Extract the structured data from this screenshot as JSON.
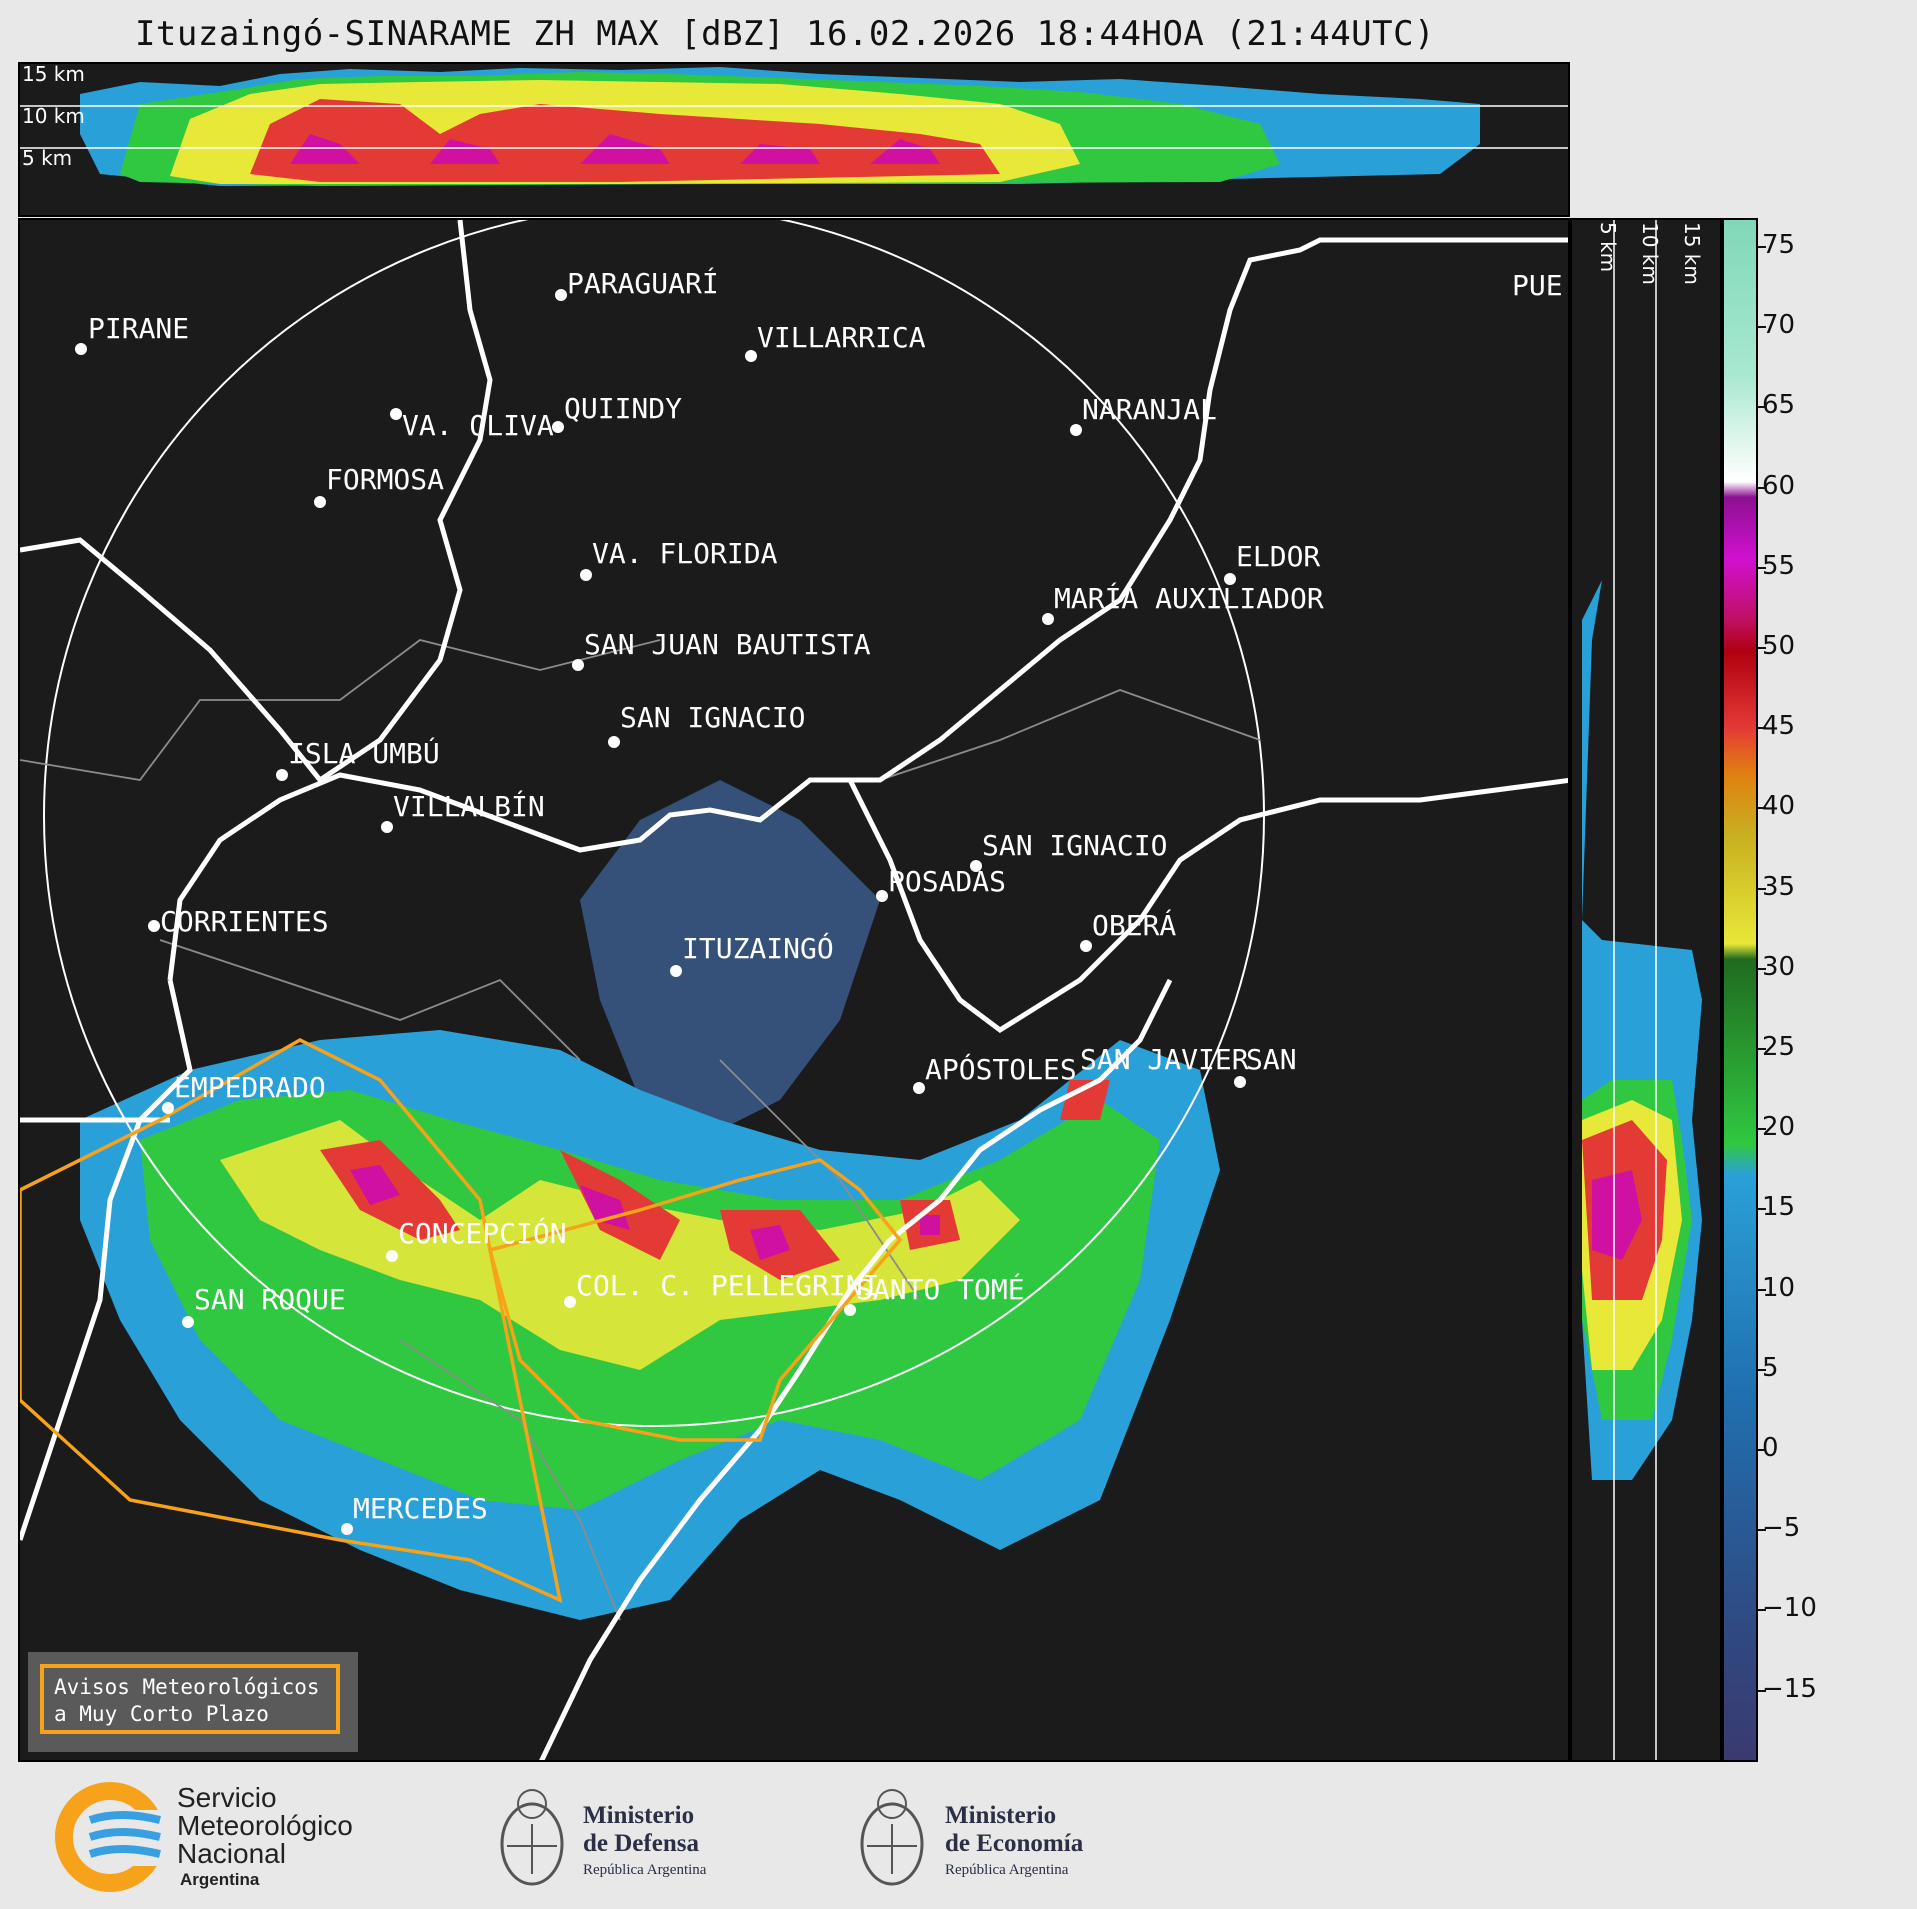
{
  "title": "Ituzaingó-SINARAME ZH MAX [dBZ] 16.02.2026 18:44HOA (21:44UTC)",
  "top_panel": {
    "labels": [
      "15 km",
      "10 km",
      "5 km"
    ]
  },
  "right_panel": {
    "labels": [
      "5 km",
      "10 km",
      "15 km"
    ]
  },
  "colorbar": {
    "ticks": [
      "75",
      "70",
      "65",
      "60",
      "55",
      "50",
      "45",
      "40",
      "35",
      "30",
      "25",
      "20",
      "15",
      "10",
      "5",
      "0",
      "−5",
      "−10",
      "−15"
    ]
  },
  "cities": [
    {
      "name": "PARAGUARÍ"
    },
    {
      "name": "PIRANE"
    },
    {
      "name": "VILLARRICA"
    },
    {
      "name": "VA. OLIVA"
    },
    {
      "name": "QUIINDY"
    },
    {
      "name": "NARANJAL"
    },
    {
      "name": "FORMOSA"
    },
    {
      "name": "VA. FLORIDA"
    },
    {
      "name": "ELDOR"
    },
    {
      "name": "MARÍA AUXILIADOR"
    },
    {
      "name": "SAN JUAN BAUTISTA"
    },
    {
      "name": "SAN IGNACIO"
    },
    {
      "name": "ISLA UMBÚ"
    },
    {
      "name": "VILLALBÍN"
    },
    {
      "name": "SAN IGNACIO"
    },
    {
      "name": "POSADAS"
    },
    {
      "name": "CORRIENTES"
    },
    {
      "name": "ITUZAINGÓ"
    },
    {
      "name": "OBERÁ"
    },
    {
      "name": "APÓSTOLES"
    },
    {
      "name": "SAN JAVIER"
    },
    {
      "name": "SAN"
    },
    {
      "name": "EMPEDRADO"
    },
    {
      "name": "CONCEPCIÓN"
    },
    {
      "name": "COL. C. PELLEGRINI"
    },
    {
      "name": "SANTO TOMÉ"
    },
    {
      "name": "SAN ROQUE"
    },
    {
      "name": "MERCEDES"
    },
    {
      "name": "PUE"
    }
  ],
  "legend": {
    "line1": "Avisos Meteorológicos",
    "line2": "a Muy Corto Plazo"
  },
  "footer": {
    "smn_line1": "Servicio",
    "smn_line2": "Meteorológico",
    "smn_line3": "Nacional",
    "smn_line4": "Argentina",
    "def_line1": "Ministerio",
    "def_line2": "de Defensa",
    "def_sub": "República Argentina",
    "eco_line1": "Ministerio",
    "eco_line2": "de Economía",
    "eco_sub": "República Argentina"
  },
  "colors": {
    "background": "#1b1b1b",
    "warning": "#f6a21a",
    "border": "#ffffff"
  }
}
